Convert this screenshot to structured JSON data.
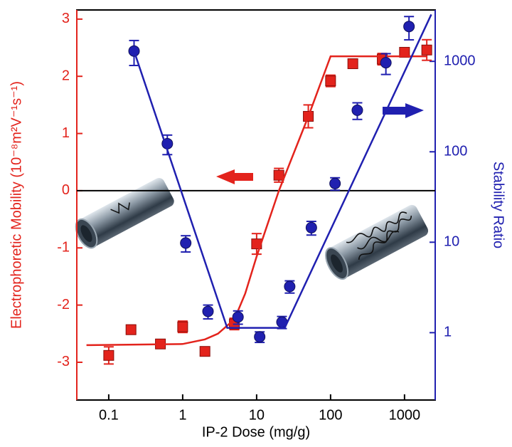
{
  "chart_data": {
    "type": "scatter",
    "x_label": "IP-2 Dose (mg/g)",
    "y_label": "Electrophoretic Mobility (10⁻⁸m²V⁻¹s⁻¹)",
    "y2_label": "Stability Ratio",
    "xlog": true,
    "y2log": true,
    "xlim": [
      0.037,
      2600
    ],
    "ylim": [
      -3.66,
      3.16
    ],
    "y2lim": [
      0.18,
      3700
    ],
    "xticks": [
      0.1,
      1,
      10,
      100,
      1000
    ],
    "yticks": [
      -3,
      -2,
      -1,
      0,
      1,
      2,
      3
    ],
    "y2ticks": [
      1,
      10,
      100,
      1000
    ],
    "y_color": "#e3231c",
    "y2_color": "#2020b0",
    "hline": 0,
    "series": [
      {
        "mode": "markers",
        "marker": "square",
        "color": "#e3231c",
        "x": [
          0.1,
          0.2,
          0.5,
          1,
          2,
          5,
          10,
          20,
          50,
          100,
          200,
          500,
          1000,
          2000
        ],
        "values": [
          -2.88,
          -2.43,
          -2.68,
          -2.38,
          -2.81,
          -2.33,
          -0.93,
          0.27,
          1.3,
          1.92,
          2.22,
          2.3,
          2.42,
          2.46
        ],
        "errors": [
          0.15,
          0.08,
          0.05,
          0.1,
          0.04,
          0.1,
          0.18,
          0.12,
          0.2,
          0.1,
          0.08,
          0.1,
          0.08,
          0.18
        ]
      },
      {
        "mode": "line",
        "color": "#e3231c",
        "x": [
          0.05,
          1,
          2,
          3,
          5,
          7,
          10,
          20,
          50,
          100,
          2000
        ],
        "values": [
          -2.7,
          -2.68,
          -2.6,
          -2.5,
          -2.25,
          -1.8,
          -1.15,
          0,
          1.3,
          2.35,
          2.35
        ]
      },
      {
        "mode": "markers",
        "marker": "circle",
        "color": "#2020b0",
        "axis": "y2",
        "x": [
          0.22,
          0.62,
          1.1,
          2.2,
          5.6,
          11,
          22,
          28,
          55,
          115,
          230,
          560,
          1150
        ],
        "values": [
          1300,
          123,
          9.8,
          1.72,
          1.49,
          0.9,
          1.31,
          3.24,
          14.5,
          44.6,
          288,
          966,
          2430
        ],
        "errors": [
          400,
          30,
          2,
          0.3,
          0.25,
          0.12,
          0.2,
          0.5,
          2.5,
          7,
          60,
          250,
          700
        ]
      },
      {
        "mode": "line",
        "color": "#2020b0",
        "axis": "y2",
        "x": [
          0.22,
          4,
          24,
          2300
        ],
        "values": [
          1300,
          1.13,
          1.13,
          3300
        ]
      }
    ]
  }
}
